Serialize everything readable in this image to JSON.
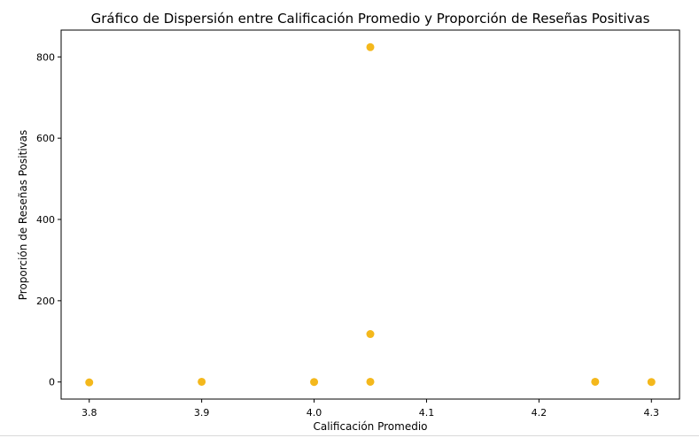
{
  "chart_data": {
    "type": "scatter",
    "title": "Gráfico de Dispersión entre Calificación Promedio y Proporción de Reseñas Positivas",
    "xlabel": "Calificación Promedio",
    "ylabel": "Proporción de Reseñas Positivas",
    "xlim": [
      3.775,
      4.325
    ],
    "ylim": [
      -42,
      866
    ],
    "x_ticks": [
      3.8,
      3.9,
      4.0,
      4.1,
      4.2,
      4.3
    ],
    "x_tick_labels": [
      "3.8",
      "3.9",
      "4.0",
      "4.1",
      "4.2",
      "4.3"
    ],
    "y_ticks": [
      0,
      200,
      400,
      600,
      800
    ],
    "y_tick_labels": [
      "0",
      "200",
      "400",
      "600",
      "800"
    ],
    "grid": false,
    "marker_color": "#f4b81c",
    "points": [
      {
        "x": 3.8,
        "y": -1
      },
      {
        "x": 3.9,
        "y": 0.5
      },
      {
        "x": 4.0,
        "y": 0
      },
      {
        "x": 4.05,
        "y": 824
      },
      {
        "x": 4.05,
        "y": 118
      },
      {
        "x": 4.05,
        "y": 0.5
      },
      {
        "x": 4.25,
        "y": 0.5
      },
      {
        "x": 4.3,
        "y": 0
      }
    ]
  }
}
